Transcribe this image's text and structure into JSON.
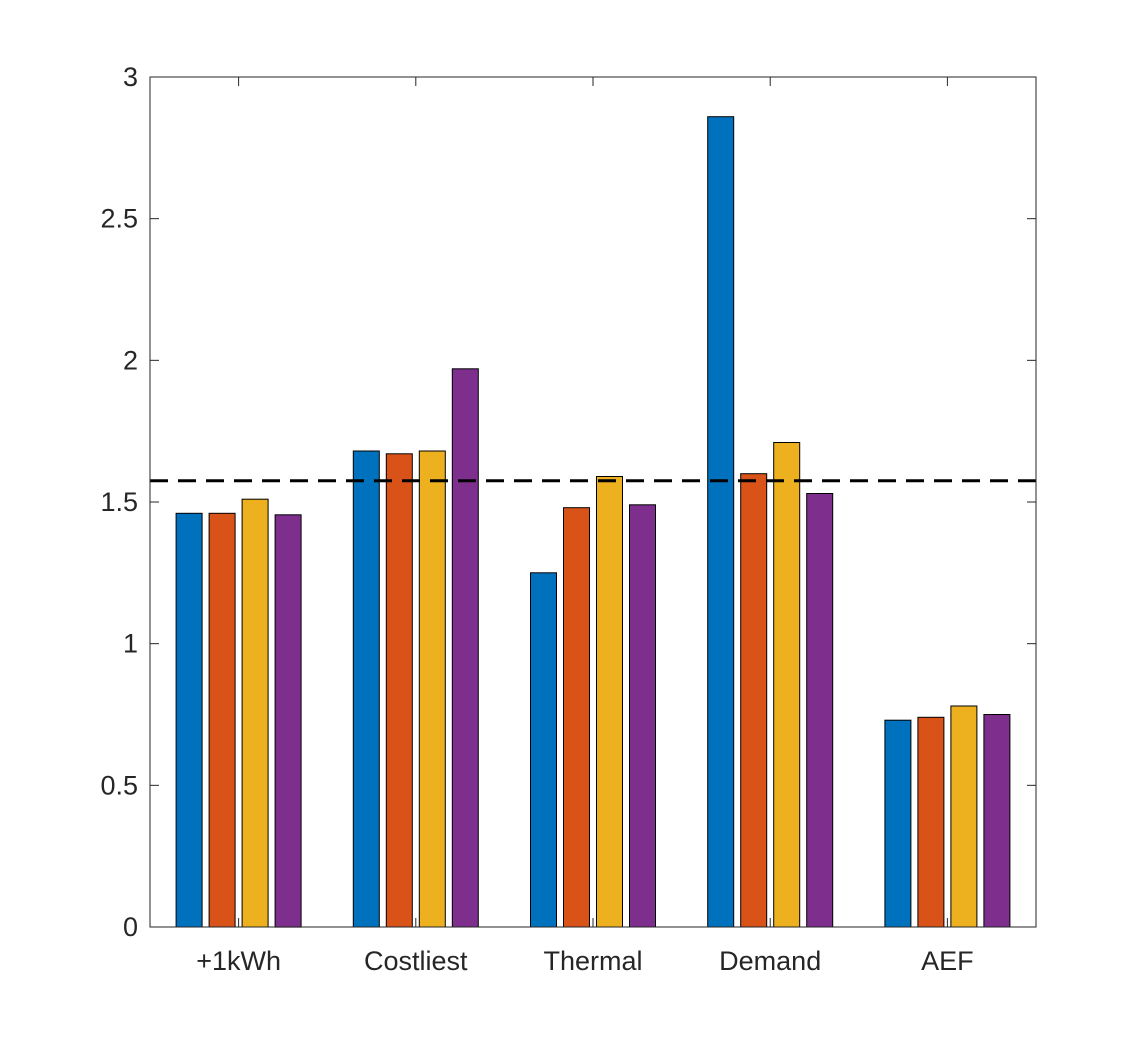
{
  "chart_data": {
    "type": "bar",
    "title": "",
    "xlabel": "",
    "ylabel": "",
    "categories": [
      "+1kWh",
      "Costliest",
      "Thermal",
      "Demand",
      "AEF"
    ],
    "series": [
      {
        "color": "#0072BD",
        "values": [
          1.46,
          1.68,
          1.25,
          2.86,
          0.73
        ]
      },
      {
        "color": "#D95319",
        "values": [
          1.46,
          1.67,
          1.48,
          1.6,
          0.74
        ]
      },
      {
        "color": "#EDB120",
        "values": [
          1.51,
          1.68,
          1.59,
          1.71,
          0.78
        ]
      },
      {
        "color": "#7E2F8E",
        "values": [
          1.455,
          1.97,
          1.49,
          1.53,
          0.75
        ]
      }
    ],
    "ylim": [
      0,
      3
    ],
    "yticks": [
      0,
      0.5,
      1,
      1.5,
      2,
      2.5,
      3
    ],
    "ytick_labels": [
      "0",
      "0.5",
      "1",
      "1.5",
      "2",
      "2.5",
      "3"
    ],
    "reference_line": {
      "y": 1.575,
      "style": "dashed",
      "color": "#000000"
    },
    "grid": false,
    "legend": "none"
  }
}
